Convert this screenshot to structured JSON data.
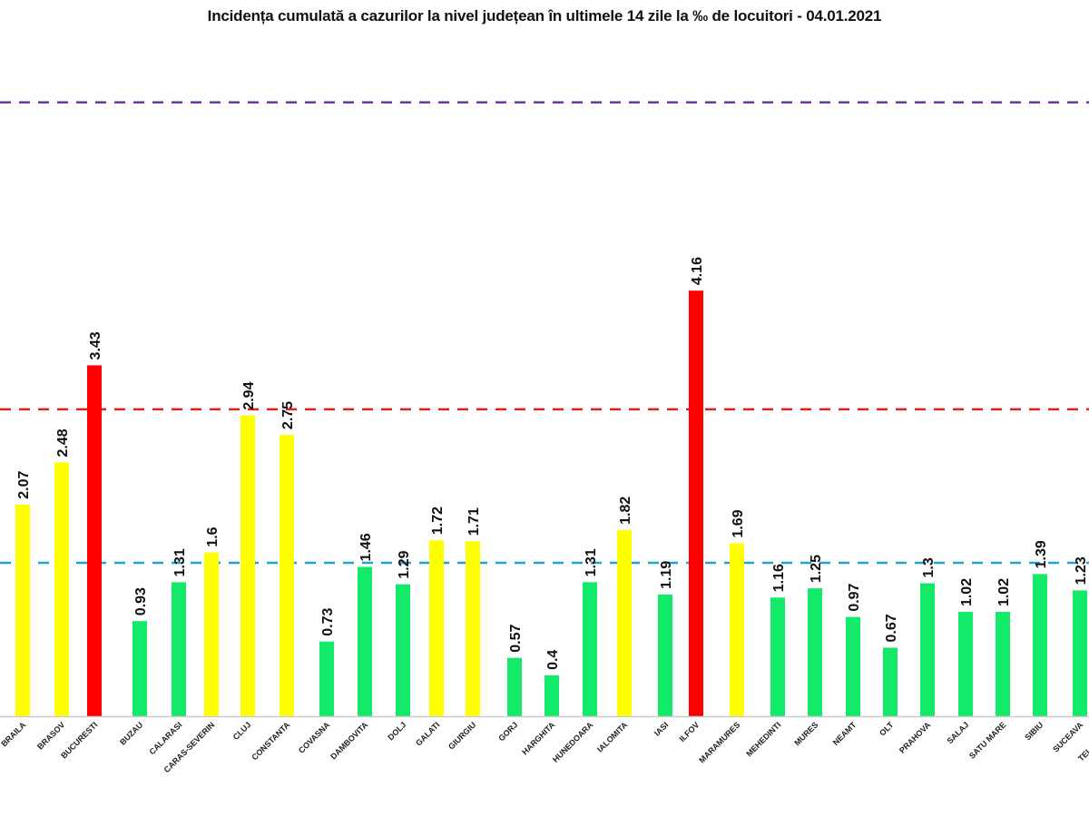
{
  "chart_data": {
    "type": "bar",
    "title": "Incidența cumulată a cazurilor la nivel județean în ultimele 14 zile la ‰ de locuitori - 04.01.2021",
    "xlabel": "",
    "ylabel": "",
    "ylim": [
      0,
      6.2
    ],
    "grid": false,
    "legend": "none",
    "categories": [
      "BRAILA",
      "BRASOV",
      "BUCURESTI",
      "BUZAU",
      "CALARASI",
      "CARAS-SEVERIN",
      "CLUJ",
      "CONSTANTA",
      "COVASNA",
      "DAMBOVITA",
      "DOLJ",
      "GALATI",
      "GIURGIU",
      "GORJ",
      "HARGHITA",
      "HUNEDOARA",
      "IALOMITA",
      "IASI",
      "ILFOV",
      "MARAMURES",
      "MEHEDINTI",
      "MURES",
      "NEAMT",
      "OLT",
      "PRAHOVA",
      "SALAJ",
      "SATU MARE",
      "SIBIU",
      "SUCEAVA",
      "TELEORMAN"
    ],
    "values": [
      2.07,
      2.48,
      3.43,
      0.93,
      1.31,
      1.6,
      2.94,
      2.75,
      0.73,
      1.46,
      1.29,
      1.72,
      1.71,
      0.57,
      0.4,
      1.31,
      1.82,
      1.19,
      4.16,
      1.69,
      1.16,
      1.25,
      0.97,
      0.67,
      1.3,
      1.02,
      1.02,
      1.39,
      1.23,
      null
    ],
    "value_labels": [
      "2.07",
      "2.48",
      "3.43",
      "0.93",
      "1.31",
      "1.6",
      "2.94",
      "2.75",
      "0.73",
      "1.46",
      "1.29",
      "1.72",
      "1.71",
      "0.57",
      "0.4",
      "1.31",
      "1.82",
      "1.19",
      "4.16",
      "1.69",
      "1.16",
      "1.25",
      "0.97",
      "0.67",
      "1.3",
      "1.02",
      "1.02",
      "1.39",
      "1.23",
      ""
    ],
    "thresholds": [
      {
        "name": "threshold-1.5",
        "value": 1.5,
        "color": "#1fa3d6"
      },
      {
        "name": "threshold-3",
        "value": 3.0,
        "color": "#e02020"
      },
      {
        "name": "threshold-6",
        "value": 6.0,
        "color": "#6a3aa0"
      }
    ],
    "colors": {
      "green": "#13ea6a",
      "yellow": "#ffff00",
      "red": "#ff0000",
      "baseline": "#cccccc"
    }
  }
}
